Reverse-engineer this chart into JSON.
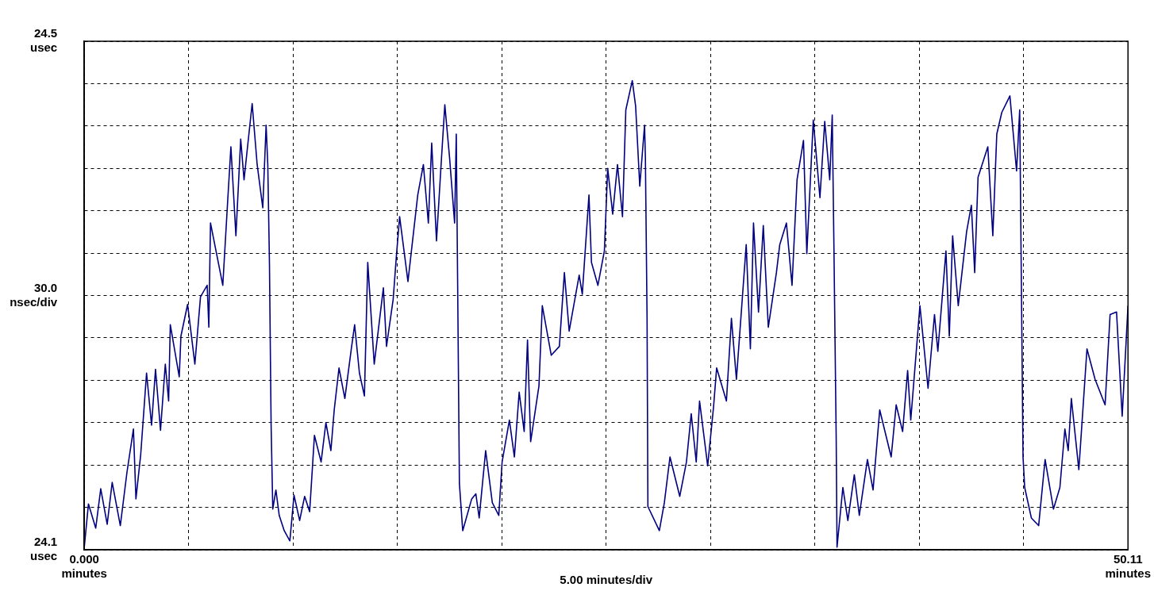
{
  "chart_data": {
    "type": "line",
    "xlabel": "5.00 minutes/div",
    "ylabel": "30.0\nnsec/div",
    "x": [
      0,
      0.2,
      0.55,
      0.79,
      1.1,
      1.34,
      1.73,
      2.05,
      2.36,
      2.48,
      2.71,
      2.99,
      3.23,
      3.42,
      3.66,
      3.89,
      4.05,
      4.13,
      4.56,
      4.64,
      4.96,
      5.31,
      5.58,
      5.9,
      5.98,
      6.06,
      6.65,
      6.88,
      7.04,
      7.28,
      7.51,
      7.67,
      8.06,
      8.3,
      8.57,
      8.73,
      8.81,
      8.89,
      8.97,
      9.05,
      9.2,
      9.36,
      9.6,
      9.87,
      10.07,
      10.34,
      10.58,
      10.82,
      10.97,
      11.05,
      11.37,
      11.6,
      11.84,
      12.0,
      12.23,
      12.51,
      12.82,
      12.98,
      13.21,
      13.45,
      13.61,
      13.92,
      14.36,
      14.51,
      14.83,
      14.98,
      15.14,
      15.54,
      16.01,
      16.28,
      16.52,
      16.68,
      16.91,
      17.15,
      17.31,
      17.54,
      17.78,
      17.86,
      17.93,
      18.01,
      18.17,
      18.6,
      18.8,
      18.96,
      19.27,
      19.59,
      19.9,
      20.06,
      20.41,
      20.65,
      20.88,
      21.12,
      21.28,
      21.43,
      21.83,
      21.99,
      22.42,
      22.81,
      23.05,
      23.28,
      23.76,
      23.91,
      24.23,
      24.35,
      24.66,
      24.97,
      25.13,
      25.37,
      25.6,
      25.84,
      26.0,
      26.31,
      26.47,
      26.67,
      26.9,
      26.94,
      27.02,
      27.06,
      27.61,
      27.85,
      28.12,
      28.59,
      28.91,
      29.14,
      29.38,
      29.54,
      29.93,
      30.21,
      30.36,
      30.83,
      31.07,
      31.31,
      31.78,
      31.98,
      32.13,
      32.37,
      32.6,
      32.84,
      33.23,
      33.39,
      33.71,
      33.98,
      34.22,
      34.53,
      34.69,
      35.0,
      35.32,
      35.55,
      35.79,
      35.91,
      35.99,
      36.1,
      36.14,
      36.42,
      36.66,
      36.97,
      37.21,
      37.6,
      37.87,
      38.19,
      38.74,
      38.98,
      39.29,
      39.53,
      39.68,
      40.12,
      40.51,
      40.82,
      40.98,
      41.37,
      41.53,
      41.69,
      41.96,
      42.36,
      42.59,
      42.75,
      42.91,
      43.38,
      43.62,
      43.81,
      44.05,
      44.44,
      44.76,
      44.91,
      44.99,
      45.07,
      45.15,
      45.47,
      45.82,
      46.13,
      46.53,
      46.84,
      47.08,
      47.24,
      47.39,
      47.75,
      48.14,
      48.53,
      49.01,
      49.25,
      49.56,
      49.83,
      50.11
    ],
    "series": [
      {
        "color": "#000080",
        "values": [
          24.102,
          24.136,
          24.117,
          24.148,
          24.12,
          24.153,
          24.119,
          24.161,
          24.195,
          24.14,
          24.175,
          24.239,
          24.198,
          24.242,
          24.194,
          24.246,
          24.217,
          24.277,
          24.236,
          24.268,
          24.293,
          24.246,
          24.299,
          24.308,
          24.275,
          24.357,
          24.308,
          24.373,
          24.417,
          24.347,
          24.423,
          24.391,
          24.451,
          24.403,
          24.369,
          24.434,
          24.403,
          24.326,
          24.198,
          24.132,
          24.147,
          24.127,
          24.115,
          24.107,
          24.143,
          24.123,
          24.142,
          24.13,
          24.169,
          24.19,
          24.169,
          24.2,
          24.178,
          24.21,
          24.243,
          24.219,
          24.258,
          24.277,
          24.239,
          24.221,
          24.326,
          24.246,
          24.306,
          24.26,
          24.297,
          24.33,
          24.362,
          24.311,
          24.379,
          24.403,
          24.357,
          24.42,
          24.343,
          24.408,
          24.45,
          24.408,
          24.357,
          24.427,
          24.301,
          24.152,
          24.115,
          24.14,
          24.144,
          24.125,
          24.178,
          24.137,
          24.127,
          24.169,
          24.202,
          24.173,
          24.224,
          24.193,
          24.265,
          24.185,
          24.229,
          24.292,
          24.253,
          24.26,
          24.318,
          24.272,
          24.316,
          24.301,
          24.379,
          24.326,
          24.308,
          24.335,
          24.4,
          24.364,
          24.403,
          24.362,
          24.446,
          24.469,
          24.449,
          24.386,
          24.434,
          24.408,
          24.282,
          24.134,
          24.115,
          24.137,
          24.173,
          24.142,
          24.169,
          24.207,
          24.169,
          24.217,
          24.166,
          24.212,
          24.243,
          24.217,
          24.282,
          24.234,
          24.34,
          24.258,
          24.357,
          24.287,
          24.355,
          24.275,
          24.318,
          24.34,
          24.357,
          24.308,
          24.391,
          24.422,
          24.333,
          24.438,
          24.377,
          24.437,
          24.391,
          24.442,
          24.34,
          24.188,
          24.102,
          24.149,
          24.123,
          24.159,
          24.127,
          24.171,
          24.147,
          24.21,
          24.173,
          24.214,
          24.193,
          24.241,
          24.202,
          24.292,
          24.227,
          24.285,
          24.256,
          24.335,
          24.268,
          24.347,
          24.292,
          24.35,
          24.371,
          24.318,
          24.393,
          24.417,
          24.347,
          24.427,
          24.444,
          24.457,
          24.398,
          24.446,
          24.311,
          24.173,
          24.149,
          24.125,
          24.119,
          24.171,
          24.132,
          24.149,
          24.195,
          24.178,
          24.219,
          24.163,
          24.258,
          24.234,
          24.214,
          24.285,
          24.287,
          24.205,
          24.292
        ]
      }
    ],
    "xlim": [
      0,
      50.11
    ],
    "ylim": [
      24.1,
      24.5
    ],
    "xticks": [
      {
        "value": 0,
        "label": "0.000\nminutes"
      },
      {
        "value": 5.011,
        "label": null
      },
      {
        "value": 10.022,
        "label": null
      },
      {
        "value": 15.033,
        "label": null
      },
      {
        "value": 20.044,
        "label": null
      },
      {
        "value": 25.055,
        "label": null
      },
      {
        "value": 30.066,
        "label": null
      },
      {
        "value": 35.077,
        "label": null
      },
      {
        "value": 40.088,
        "label": null
      },
      {
        "value": 45.099,
        "label": null
      },
      {
        "value": 50.11,
        "label": "50.11\nminutes"
      }
    ],
    "yticks": [
      {
        "value": 24.1,
        "label": "24.1\nusec"
      },
      {
        "value": 24.1333,
        "label": null
      },
      {
        "value": 24.1667,
        "label": null
      },
      {
        "value": 24.2,
        "label": null
      },
      {
        "value": 24.2333,
        "label": null
      },
      {
        "value": 24.2667,
        "label": null
      },
      {
        "value": 24.3,
        "label": null
      },
      {
        "value": 24.3333,
        "label": null
      },
      {
        "value": 24.3667,
        "label": null
      },
      {
        "value": 24.4,
        "label": null
      },
      {
        "value": 24.4333,
        "label": null
      },
      {
        "value": 24.4667,
        "label": null
      },
      {
        "value": 24.5,
        "label": "24.5\nusec"
      }
    ],
    "grid": true,
    "marker": "none",
    "line_style": "solid"
  }
}
